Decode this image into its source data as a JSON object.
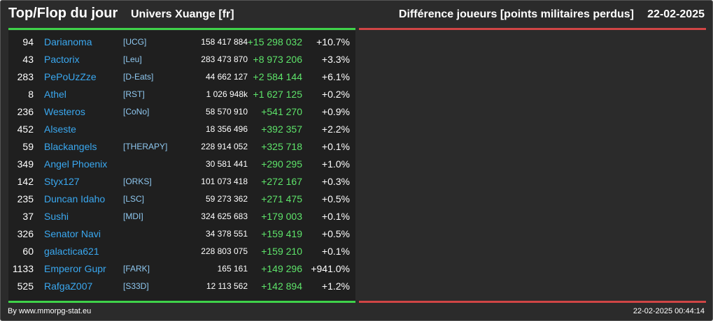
{
  "header": {
    "title": "Top/Flop du jour",
    "universe": "Univers Xuange [fr]",
    "subtitle": "Différence joueurs [points militaires perdus]",
    "date": "22-02-2025"
  },
  "colors": {
    "positive": "#5ee46a",
    "name": "#3aa8f0",
    "ally": "#8fc8f0",
    "top_bar": "#3fd34a",
    "flop_bar": "#d04545"
  },
  "rows": [
    {
      "rank": "94",
      "name": "Darianoma",
      "ally": "[UCG]",
      "points": "158 417 884",
      "diff": "+15 298 032",
      "pct": "+10.7%"
    },
    {
      "rank": "43",
      "name": "Pactorix",
      "ally": "[Leu]",
      "points": "283 473 870",
      "diff": "+8 973 206",
      "pct": "+3.3%"
    },
    {
      "rank": "283",
      "name": "PePoUzZze",
      "ally": "[D-Eats]",
      "points": "44 662 127",
      "diff": "+2 584 144",
      "pct": "+6.1%"
    },
    {
      "rank": "8",
      "name": "Athel",
      "ally": "[RST]",
      "points": "1 026 948k",
      "diff": "+1 627 125",
      "pct": "+0.2%"
    },
    {
      "rank": "236",
      "name": "Westeros",
      "ally": "[CoNo]",
      "points": "58 570 910",
      "diff": "+541 270",
      "pct": "+0.9%"
    },
    {
      "rank": "452",
      "name": "Alseste",
      "ally": "",
      "points": "18 356 496",
      "diff": "+392 357",
      "pct": "+2.2%"
    },
    {
      "rank": "59",
      "name": "Blackangels",
      "ally": "[THERAPY]",
      "points": "228 914 052",
      "diff": "+325 718",
      "pct": "+0.1%"
    },
    {
      "rank": "349",
      "name": "Angel Phoenix",
      "ally": "",
      "points": "30 581 441",
      "diff": "+290 295",
      "pct": "+1.0%"
    },
    {
      "rank": "142",
      "name": "Styx127",
      "ally": "[ORKS]",
      "points": "101 073 418",
      "diff": "+272 167",
      "pct": "+0.3%"
    },
    {
      "rank": "235",
      "name": "Duncan Idaho",
      "ally": "[LSC]",
      "points": "59 273 362",
      "diff": "+271 475",
      "pct": "+0.5%"
    },
    {
      "rank": "37",
      "name": "Sushi",
      "ally": "[MDI]",
      "points": "324 625 683",
      "diff": "+179 003",
      "pct": "+0.1%"
    },
    {
      "rank": "326",
      "name": "Senator Navi",
      "ally": "",
      "points": "34 378 551",
      "diff": "+159 419",
      "pct": "+0.5%"
    },
    {
      "rank": "60",
      "name": "galactica621",
      "ally": "",
      "points": "228 803 075",
      "diff": "+159 210",
      "pct": "+0.1%"
    },
    {
      "rank": "1133",
      "name": "Emperor Gupr",
      "ally": "[FARK]",
      "points": "165 161",
      "diff": "+149 296",
      "pct": "+941.0%"
    },
    {
      "rank": "525",
      "name": "RafgaZ007",
      "ally": "[S33D]",
      "points": "12 113 562",
      "diff": "+142 894",
      "pct": "+1.2%"
    }
  ],
  "footer": {
    "credit": "By www.mmorpg-stat.eu",
    "timestamp": "22-02-2025 00:44:14"
  }
}
